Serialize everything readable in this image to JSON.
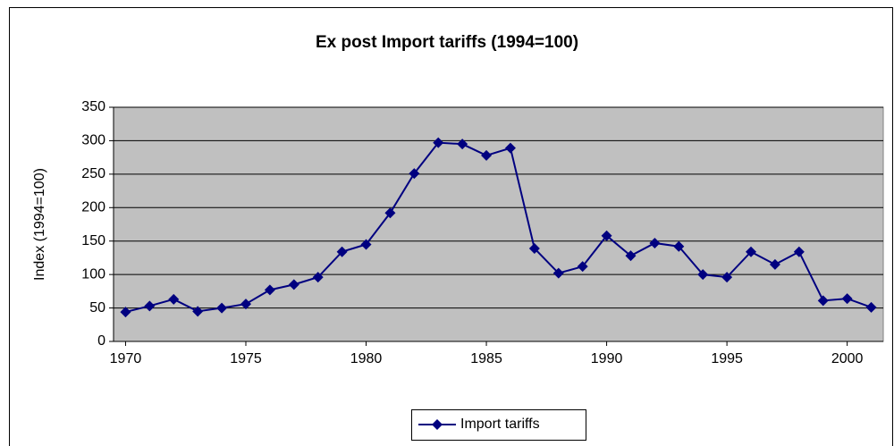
{
  "chart_data": {
    "type": "line",
    "title": "Ex post Import tariffs (1994=100)",
    "ylabel": "Index (1994=100)",
    "x": [
      1970,
      1971,
      1972,
      1973,
      1974,
      1975,
      1976,
      1977,
      1978,
      1979,
      1980,
      1981,
      1982,
      1983,
      1984,
      1985,
      1986,
      1987,
      1988,
      1989,
      1990,
      1991,
      1992,
      1993,
      1994,
      1995,
      1996,
      1997,
      1998,
      1999,
      2000,
      2001
    ],
    "series": [
      {
        "name": "Import tariffs",
        "color": "#000080",
        "values": [
          44,
          53,
          63,
          45,
          50,
          56,
          77,
          85,
          96,
          134,
          145,
          192,
          251,
          297,
          295,
          278,
          289,
          139,
          102,
          112,
          158,
          128,
          147,
          142,
          100,
          96,
          134,
          115,
          134,
          61,
          64,
          51
        ]
      }
    ],
    "xlim": [
      1969.5,
      2001.5
    ],
    "xticks": [
      1970,
      1975,
      1980,
      1985,
      1990,
      1995,
      2000
    ],
    "ylim": [
      0,
      350
    ],
    "yticks": [
      0,
      50,
      100,
      150,
      200,
      250,
      300,
      350
    ],
    "grid": true,
    "legend": "bottom",
    "plot_background": "#c0c0c0"
  }
}
